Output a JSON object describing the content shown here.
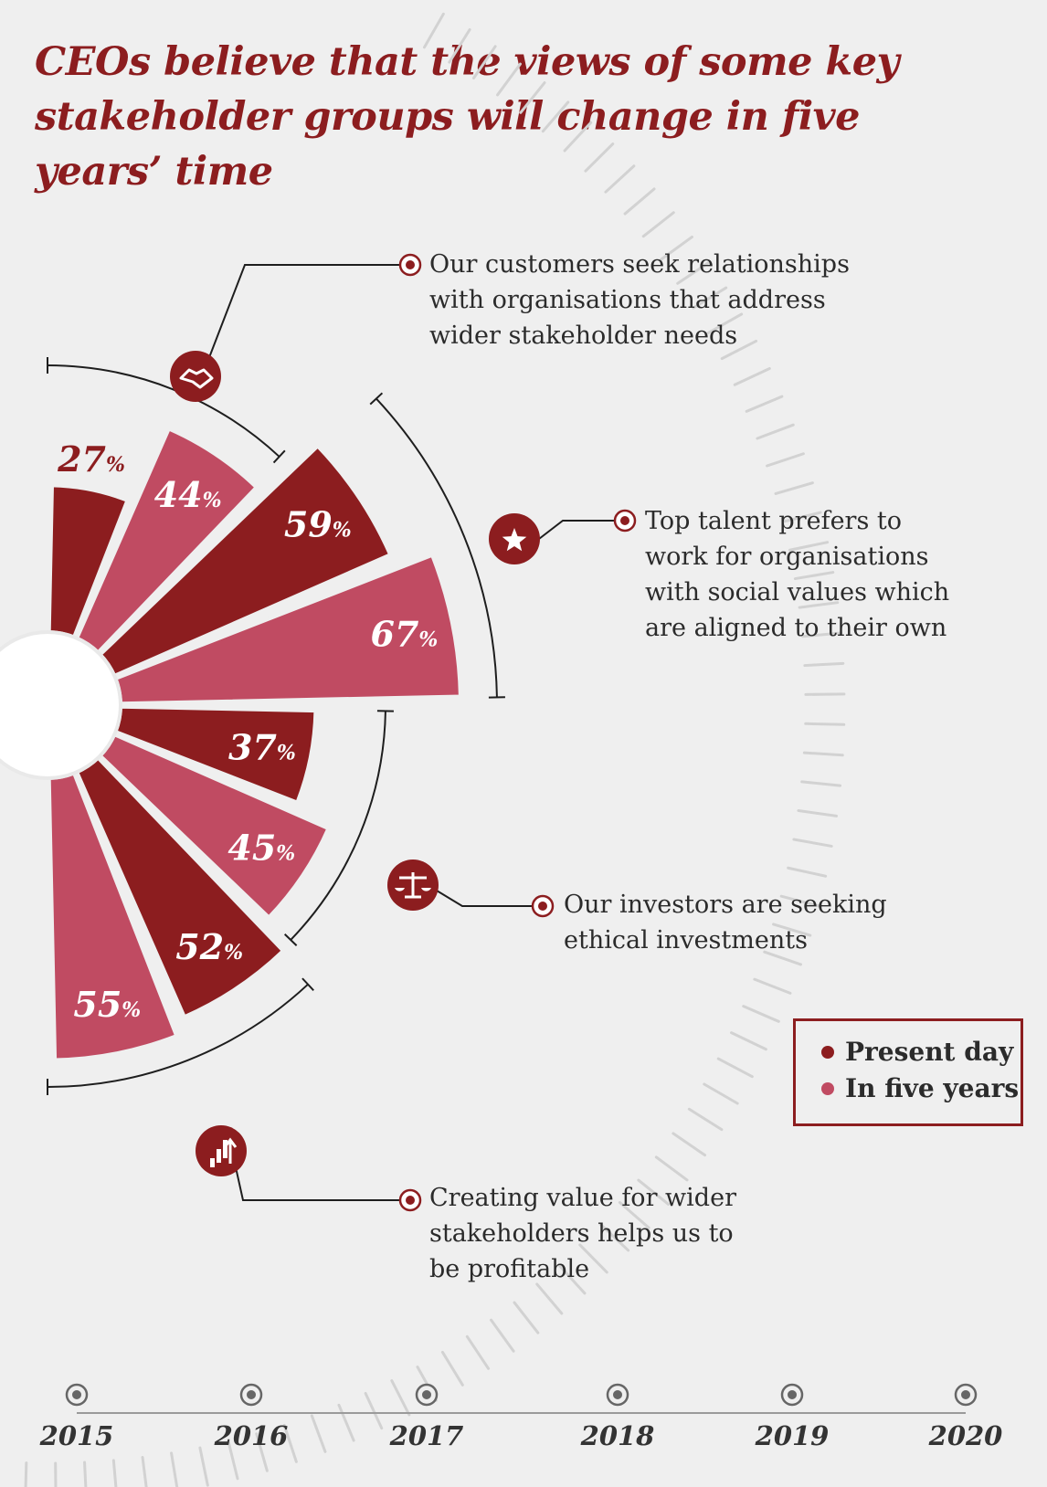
{
  "title": "CEOs believe that the views of some key stakeholder groups will change in five years’ time",
  "colors": {
    "present": "#8c1d1f",
    "future": "#c04b62",
    "accent": "#8c1d1f",
    "background": "#efefef"
  },
  "chart_data": {
    "type": "radial-bar",
    "unit": "%",
    "series": [
      {
        "name": "Present day",
        "color": "#8c1d1f"
      },
      {
        "name": "In five years",
        "color": "#c04b62"
      }
    ],
    "groups": [
      {
        "label": "Our customers seek relationships\nwith organisations that address\nwider stakeholder needs",
        "icon": "handshake-icon",
        "present": 27,
        "future": 44
      },
      {
        "label": "Top talent prefers to\nwork for organisations\nwith social values which\nare aligned to their own",
        "icon": "star-icon",
        "present": 59,
        "future": 67
      },
      {
        "label": "Our investors are seeking\nethical investments",
        "icon": "scales-icon",
        "present": 37,
        "future": 45
      },
      {
        "label": "Creating value for wider\nstakeholders helps us to\nbe profitable",
        "icon": "growth-chart-icon",
        "present": 52,
        "future": 55
      }
    ]
  },
  "legend": {
    "present": "Present day",
    "future": "In five years"
  },
  "timeline": [
    "2015",
    "2016",
    "2017",
    "2018",
    "2019",
    "2020"
  ]
}
